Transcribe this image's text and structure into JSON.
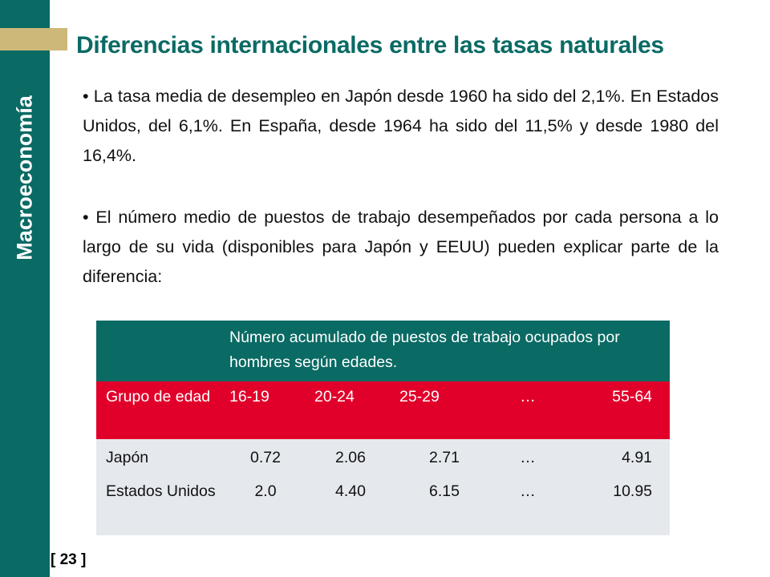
{
  "colors": {
    "sidebar": "#0a6a64",
    "accent": "#cdb87a",
    "title": "#0a6a64",
    "table_caption_bg": "#0a6a64",
    "table_header_bg": "#e1002a",
    "table_body_bg": "#e5e9ee"
  },
  "sidebar": {
    "label": "Macroeconomía"
  },
  "page": {
    "number": "[ 23 ]"
  },
  "title": "Diferencias internacionales entre las tasas naturales",
  "bullets": [
    "• La tasa media de desempleo en Japón desde 1960 ha sido del 2,1%. En Estados Unidos, del 6,1%. En España, desde 1964 ha sido del 11,5% y desde 1980 del 16,4%.",
    "• El número medio de puestos de trabajo desempeñados por cada persona a lo largo de su vida (disponibles para Japón y EEUU) pueden explicar parte de la diferencia:"
  ],
  "table": {
    "caption": "Número acumulado de puestos de trabajo ocupados por hombres según edades.",
    "headers": [
      "Grupo de edad",
      "16-19",
      "20-24",
      "25-29",
      "…",
      "55-64"
    ],
    "rows": [
      [
        "Japón",
        "0.72",
        "2.06",
        "2.71",
        "…",
        "4.91"
      ],
      [
        "Estados Unidos",
        "2.0",
        "4.40",
        "6.15",
        "…",
        "10.95"
      ]
    ]
  }
}
